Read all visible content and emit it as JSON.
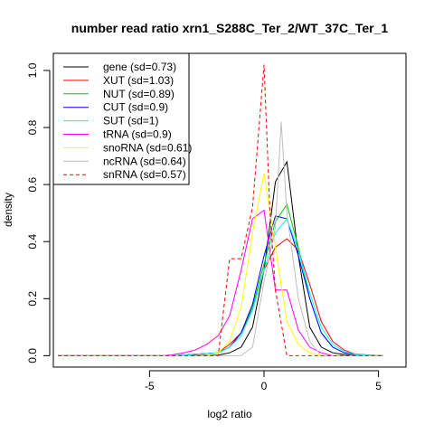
{
  "chart_data": {
    "type": "line",
    "title": "number read ratio xrn1_S288C_Ter_2/WT_37C_Ter_1",
    "xlabel": "log2 ratio",
    "ylabel": "density",
    "xlim": [
      -9.2,
      6.2
    ],
    "ylim": [
      -0.04,
      1.06
    ],
    "xticks": [
      -5,
      0,
      5
    ],
    "yticks": [
      0.0,
      0.2,
      0.4,
      0.6,
      0.8,
      1.0
    ],
    "xtick_labels": [
      "-5",
      "0",
      "5"
    ],
    "ytick_labels": [
      "0.0",
      "0.2",
      "0.4",
      "0.6",
      "0.8",
      "1.0"
    ],
    "grid": false,
    "legend_position": "top-left",
    "series": [
      {
        "name": "gene (sd=0.73)",
        "color": "#000000",
        "dash": "solid",
        "x": [
          -9,
          -4.5,
          -2,
          -1.5,
          -1,
          -0.5,
          0,
          0.5,
          1,
          1.5,
          2,
          2.5,
          3,
          3.5,
          4,
          5.2
        ],
        "y": [
          0,
          0,
          0.002,
          0.01,
          0.03,
          0.1,
          0.3,
          0.61,
          0.68,
          0.35,
          0.1,
          0.03,
          0.01,
          0.004,
          0,
          0
        ]
      },
      {
        "name": "XUT (sd=1.03)",
        "color": "#ff0000",
        "dash": "solid",
        "x": [
          -9,
          -4,
          -3,
          -2,
          -1.5,
          -1,
          -0.5,
          0,
          0.5,
          1,
          1.5,
          2,
          2.5,
          3,
          3.5,
          4,
          5.2
        ],
        "y": [
          0,
          0,
          0.005,
          0.01,
          0.04,
          0.08,
          0.16,
          0.3,
          0.38,
          0.41,
          0.37,
          0.25,
          0.12,
          0.05,
          0.02,
          0.005,
          0
        ]
      },
      {
        "name": "NUT (sd=0.89)",
        "color": "#00cc00",
        "dash": "solid",
        "x": [
          -9,
          -4,
          -3,
          -2,
          -1.5,
          -1,
          -0.5,
          0,
          0.5,
          1,
          1.5,
          2,
          2.5,
          3,
          3.5,
          4,
          5.2
        ],
        "y": [
          0,
          0,
          0.005,
          0.01,
          0.03,
          0.08,
          0.17,
          0.32,
          0.47,
          0.53,
          0.38,
          0.2,
          0.08,
          0.03,
          0.01,
          0.003,
          0
        ]
      },
      {
        "name": "CUT (sd=0.9)",
        "color": "#0000ff",
        "dash": "solid",
        "x": [
          -9,
          -4,
          -3,
          -2,
          -1.5,
          -1,
          -0.5,
          0,
          0.5,
          1,
          1.5,
          2,
          2.5,
          3,
          3.5,
          4,
          5.2
        ],
        "y": [
          0,
          0,
          0.005,
          0.01,
          0.03,
          0.08,
          0.18,
          0.35,
          0.49,
          0.48,
          0.35,
          0.2,
          0.08,
          0.03,
          0.01,
          0.003,
          0
        ]
      },
      {
        "name": "SUT (sd=1)",
        "color": "#00ffff",
        "dash": "solid",
        "x": [
          -9,
          -4,
          -3,
          -2,
          -1.5,
          -1,
          -0.5,
          0,
          0.5,
          1,
          1.5,
          2,
          2.5,
          3,
          3.5,
          4,
          5.2
        ],
        "y": [
          0,
          0,
          0.005,
          0.01,
          0.03,
          0.07,
          0.16,
          0.3,
          0.43,
          0.48,
          0.37,
          0.22,
          0.1,
          0.04,
          0.015,
          0.004,
          0
        ]
      },
      {
        "name": "tRNA (sd=0.9)",
        "color": "#ff00ff",
        "dash": "solid",
        "x": [
          -9,
          -4.5,
          -4,
          -3.5,
          -3,
          -2.5,
          -2,
          -1.5,
          -1,
          -0.5,
          0,
          0.5,
          1,
          1.5,
          2,
          2.5,
          3,
          5.2
        ],
        "y": [
          0,
          0,
          0.003,
          0.01,
          0.02,
          0.04,
          0.07,
          0.14,
          0.3,
          0.48,
          0.51,
          0.23,
          0.23,
          0.09,
          0.03,
          0.01,
          0,
          0
        ]
      },
      {
        "name": "snoRNA (sd=0.61)",
        "color": "#ffff00",
        "dash": "solid",
        "x": [
          -9,
          -2.5,
          -2,
          -1.5,
          -1,
          -0.5,
          0,
          0.5,
          1,
          1.5,
          2,
          2.5,
          5.2
        ],
        "y": [
          0,
          0,
          0.01,
          0.05,
          0.17,
          0.43,
          0.64,
          0.38,
          0.12,
          0.04,
          0.01,
          0,
          0
        ]
      },
      {
        "name": "ncRNA (sd=0.64)",
        "color": "#bebebe",
        "dash": "solid",
        "x": [
          -9,
          -1,
          -0.5,
          0,
          0.25,
          0.5,
          0.75,
          1,
          1.5,
          2,
          2.5,
          5.2
        ],
        "y": [
          0,
          0,
          0.03,
          0.26,
          0.35,
          0.45,
          0.82,
          0.5,
          0.2,
          0.05,
          0,
          0
        ]
      },
      {
        "name": "snRNA (sd=0.57)",
        "color": "#ff0000",
        "dash": "dashed",
        "x": [
          -9,
          -2,
          -1.5,
          -1,
          -0.5,
          0,
          0.25,
          0.5,
          1,
          1.5,
          5.2
        ],
        "y": [
          0,
          0,
          0.34,
          0.34,
          0.52,
          1.02,
          0.52,
          0.23,
          0,
          0,
          0
        ]
      }
    ]
  }
}
